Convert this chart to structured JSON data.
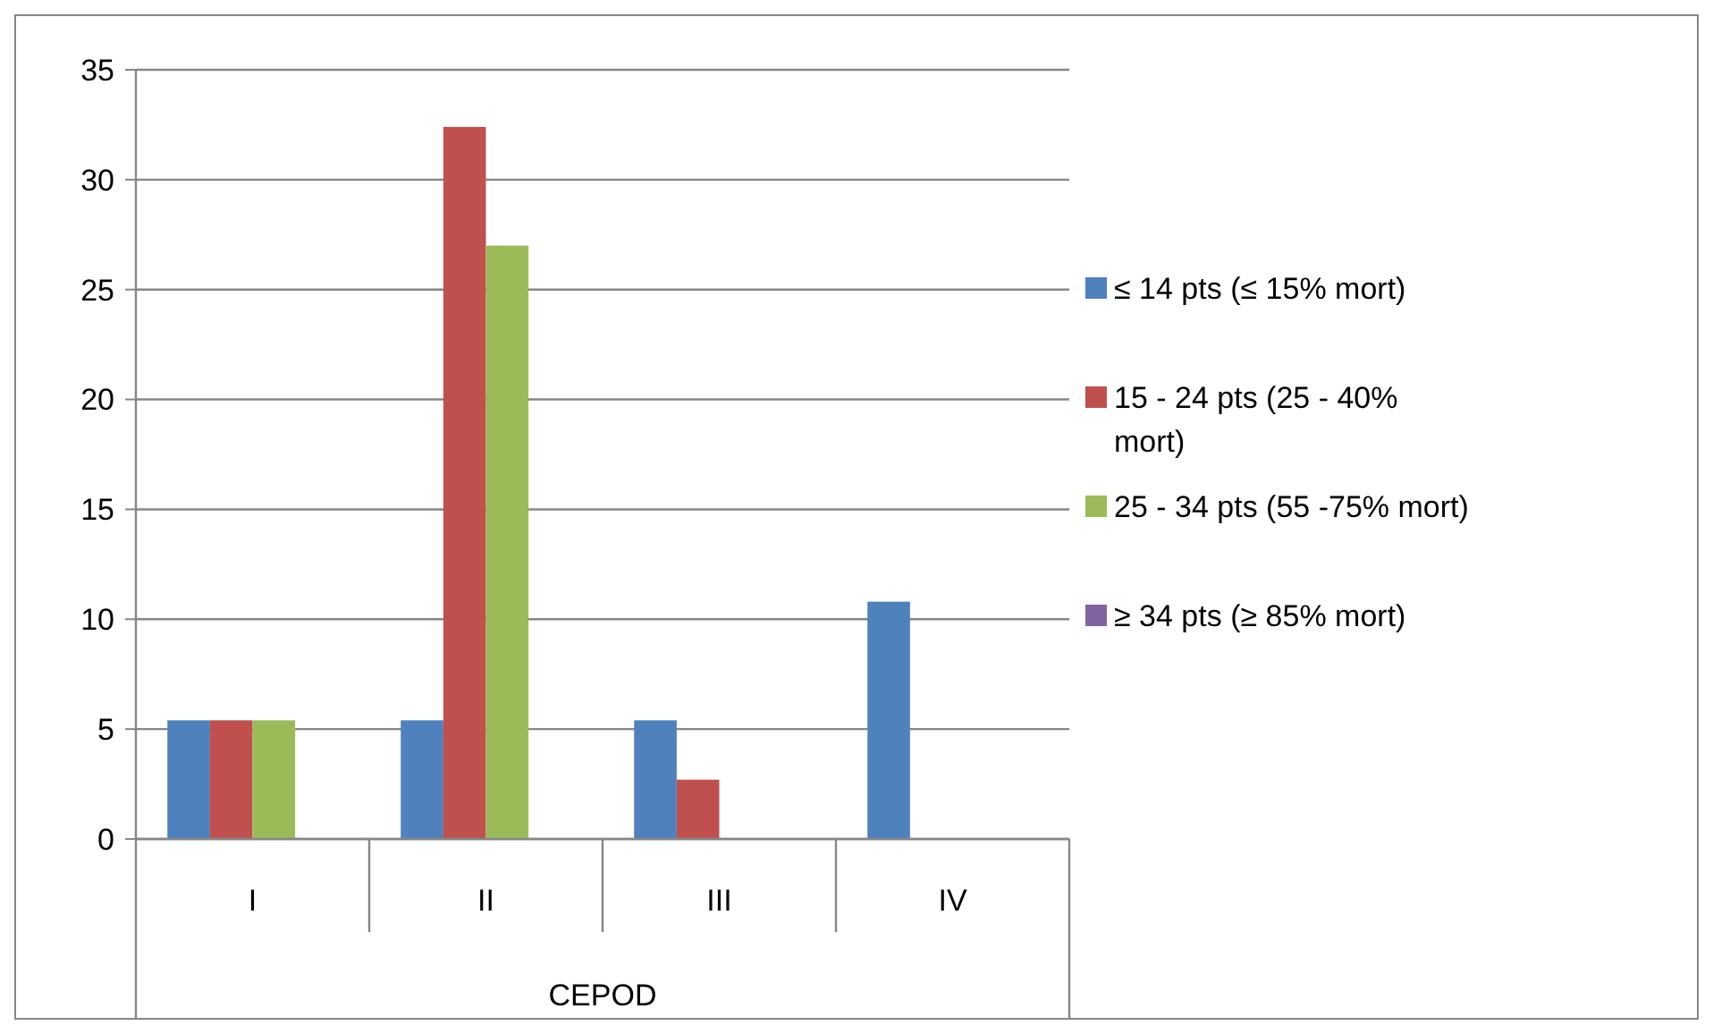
{
  "chart_data": {
    "type": "bar",
    "xlabel": "CEPOD",
    "categories": [
      "I",
      "II",
      "III",
      "IV"
    ],
    "series": [
      {
        "name": "≤ 14 pts (≤ 15% mort)",
        "color": "#4f81bd",
        "values": [
          5.4,
          5.4,
          5.4,
          10.8
        ]
      },
      {
        "name": "15 - 24 pts (25 - 40% mort)",
        "color": "#c0504d",
        "values": [
          5.4,
          32.4,
          2.7,
          0
        ]
      },
      {
        "name": "25 - 34 pts (55 -75% mort)",
        "color": "#9bbb59",
        "values": [
          5.4,
          27,
          0,
          0
        ]
      },
      {
        "name": "≥ 34 pts (≥ 85% mort)",
        "color": "#8064a2",
        "values": [
          0,
          0,
          0,
          0
        ]
      }
    ],
    "ylim": [
      0,
      35
    ],
    "yticks": [
      0,
      5,
      10,
      15,
      20,
      25,
      30,
      35
    ],
    "grid": "y",
    "legend": "right"
  }
}
